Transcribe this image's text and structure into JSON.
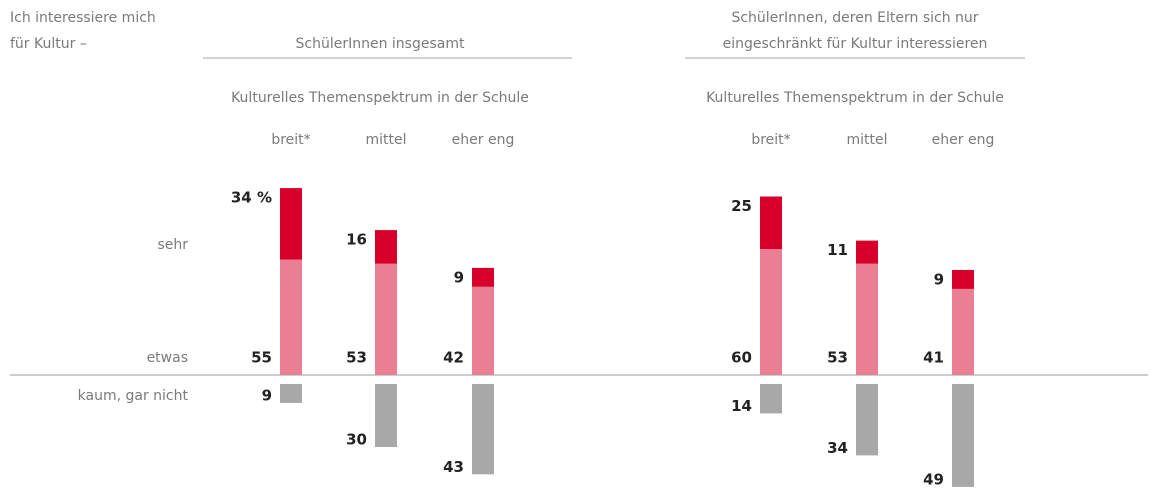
{
  "row_header": [
    "Ich interessiere mich",
    "für Kultur –"
  ],
  "row_labels": [
    "sehr",
    "etwas",
    "kaum, gar nicht"
  ],
  "chart_data": [
    {
      "type": "bar",
      "title": [
        "SchülerInnen insgesamt"
      ],
      "subtitle": "Kulturelles Themenspektrum in der Schule",
      "categories": [
        "breit*",
        "mittel",
        "eher eng"
      ],
      "series": [
        {
          "color": "#d6002a",
          "values": [
            34,
            16,
            9
          ],
          "value_labels": [
            "34 %",
            "16",
            "9"
          ]
        },
        {
          "color": "#ea7f93",
          "values": [
            55,
            53,
            42
          ]
        },
        {
          "color": "#a8a8a8",
          "values": [
            9,
            30,
            43
          ],
          "direction": "down"
        }
      ]
    },
    {
      "type": "bar",
      "title": [
        "SchülerInnen, deren Eltern sich nur",
        "eingeschränkt für Kultur interessieren"
      ],
      "subtitle": "Kulturelles Themenspektrum in der Schule",
      "categories": [
        "breit*",
        "mittel",
        "eher eng"
      ],
      "series": [
        {
          "color": "#d6002a",
          "values": [
            25,
            11,
            9
          ]
        },
        {
          "color": "#ea7f93",
          "values": [
            60,
            53,
            41
          ]
        },
        {
          "color": "#a8a8a8",
          "values": [
            14,
            34,
            49
          ],
          "direction": "down"
        }
      ]
    }
  ]
}
